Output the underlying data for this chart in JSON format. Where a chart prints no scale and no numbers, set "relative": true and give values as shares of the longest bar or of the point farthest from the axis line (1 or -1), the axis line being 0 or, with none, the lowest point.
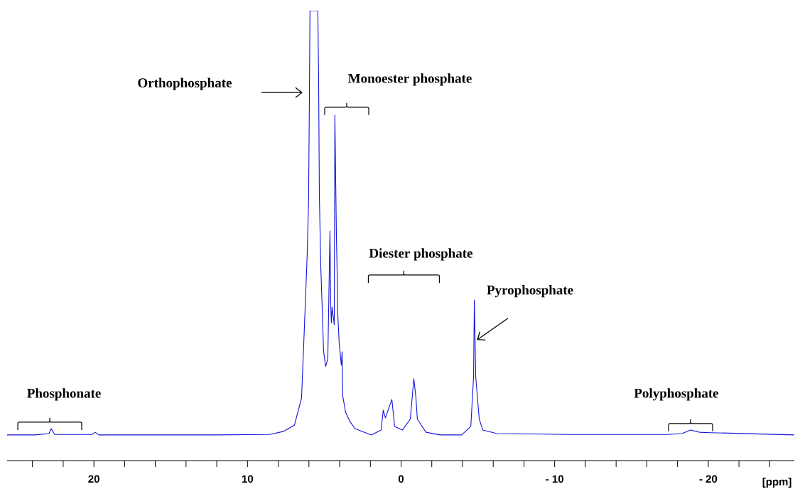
{
  "chart_data": {
    "type": "line",
    "relative": true,
    "xlabel": "[ppm]",
    "xlim": [
      25.65,
      -25.6
    ],
    "xticks": [
      {
        "value": 24,
        "label": null
      },
      {
        "value": 22,
        "label": null
      },
      20,
      {
        "value": 18,
        "label": null
      },
      {
        "value": 16,
        "label": null
      },
      {
        "value": 14,
        "label": null
      },
      {
        "value": 12,
        "label": null
      },
      10,
      {
        "value": 8,
        "label": null
      },
      {
        "value": 6,
        "label": null
      },
      {
        "value": 4,
        "label": null
      },
      {
        "value": 2,
        "label": null
      },
      0,
      {
        "value": -2,
        "label": null
      },
      {
        "value": -4,
        "label": null
      },
      {
        "value": -6,
        "label": null
      },
      {
        "value": -8,
        "label": null
      },
      {
        "value": -10,
        "label": "- 10"
      },
      {
        "value": -12,
        "label": null
      },
      {
        "value": -14,
        "label": null
      },
      {
        "value": -16,
        "label": null
      },
      {
        "value": -18,
        "label": null
      },
      {
        "value": -20,
        "label": "- 20"
      },
      {
        "value": -22,
        "label": null
      },
      {
        "value": -24,
        "label": null
      }
    ],
    "series": [
      {
        "color": "#1414dc",
        "x": [
          25.65,
          23.84,
          22.92,
          22.78,
          22.55,
          20.14,
          19.91,
          19.68,
          12.27,
          8.56,
          7.64,
          6.94,
          6.48,
          6.3,
          6.11,
          6.02,
          5.97,
          5.93,
          5.42,
          5.37,
          5.32,
          5.23,
          5.14,
          5.09,
          5.05,
          4.91,
          4.77,
          4.63,
          4.58,
          4.54,
          4.49,
          4.35,
          4.31,
          4.21,
          4.17,
          4.12,
          4.03,
          3.89,
          3.84,
          3.8,
          3.61,
          3.33,
          3.01,
          1.94,
          1.3,
          1.16,
          1.02,
          0.6,
          0.42,
          -0.09,
          -0.6,
          -0.83,
          -0.97,
          -1.06,
          -1.62,
          -2.55,
          -3.94,
          -4.54,
          -4.72,
          -4.77,
          -4.81,
          -4.86,
          -5.09,
          -5.32,
          -6.25,
          -10.88,
          -17.36,
          -18.29,
          -18.84,
          -19.44,
          -20.14,
          -25.6
        ],
        "values": [
          0.057,
          0.057,
          0.06,
          0.071,
          0.058,
          0.058,
          0.063,
          0.057,
          0.057,
          0.058,
          0.065,
          0.079,
          0.139,
          0.291,
          0.46,
          0.583,
          0.801,
          1.0,
          1.0,
          0.859,
          0.589,
          0.434,
          0.344,
          0.291,
          0.245,
          0.209,
          0.226,
          0.51,
          0.346,
          0.306,
          0.341,
          0.302,
          0.768,
          0.499,
          0.431,
          0.324,
          0.262,
          0.212,
          0.242,
          0.144,
          0.107,
          0.087,
          0.071,
          0.057,
          0.068,
          0.112,
          0.095,
          0.136,
          0.076,
          0.068,
          0.092,
          0.182,
          0.139,
          0.092,
          0.063,
          0.057,
          0.057,
          0.076,
          0.186,
          0.357,
          0.281,
          0.186,
          0.092,
          0.068,
          0.06,
          0.058,
          0.058,
          0.06,
          0.068,
          0.063,
          0.062,
          0.057
        ]
      }
    ],
    "annotations": [
      "Phosphonate",
      "Orthophosphate",
      "Monoester phosphate",
      "Diester phosphate",
      "Pyrophosphate",
      "Polyphosphate"
    ]
  }
}
